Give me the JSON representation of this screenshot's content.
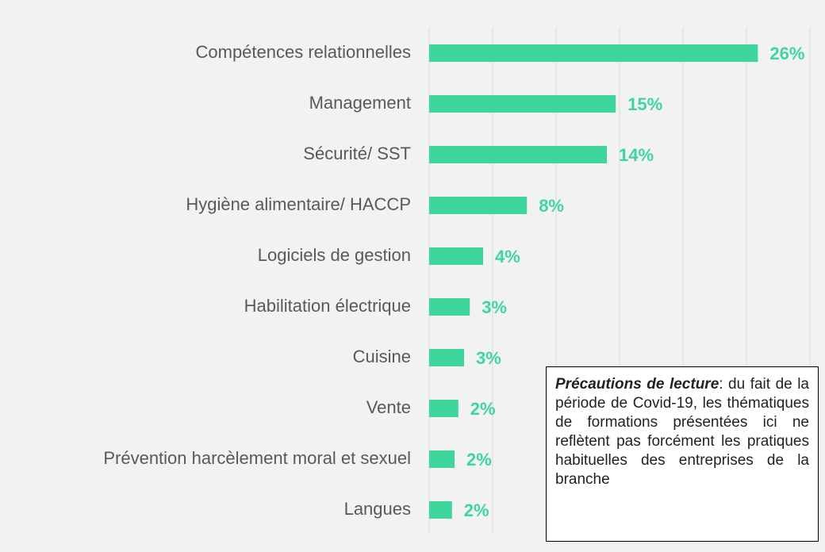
{
  "chart_data": {
    "type": "barh",
    "categories": [
      "Compétences relationnelles",
      "Management",
      "Sécurité/ SST",
      "Hygiène alimentaire/ HACCP",
      "Logiciels de gestion",
      "Habilitation électrique",
      "Cuisine",
      "Vente",
      "Prévention harcèlement moral et sexuel",
      "Langues"
    ],
    "values": [
      25.9,
      14.7,
      14,
      7.7,
      4.25,
      3.2,
      2.75,
      2.3,
      2,
      1.8
    ],
    "value_labels": [
      "26%",
      "15%",
      "14%",
      "8%",
      "4%",
      "3%",
      "3%",
      "2%",
      "2%",
      "2%"
    ],
    "color": "#3dd69c",
    "xlim": [
      0,
      30
    ],
    "xticks": [
      0,
      5,
      10,
      15,
      20,
      25,
      30
    ],
    "grid": true,
    "note": {
      "emphasis": "Précautions de lecture",
      "text": ": du fait de la période de Covid-19, les thématiques de formations présentées ici ne reflètent pas forcément les pratiques habituelles des entreprises de la branche"
    }
  }
}
